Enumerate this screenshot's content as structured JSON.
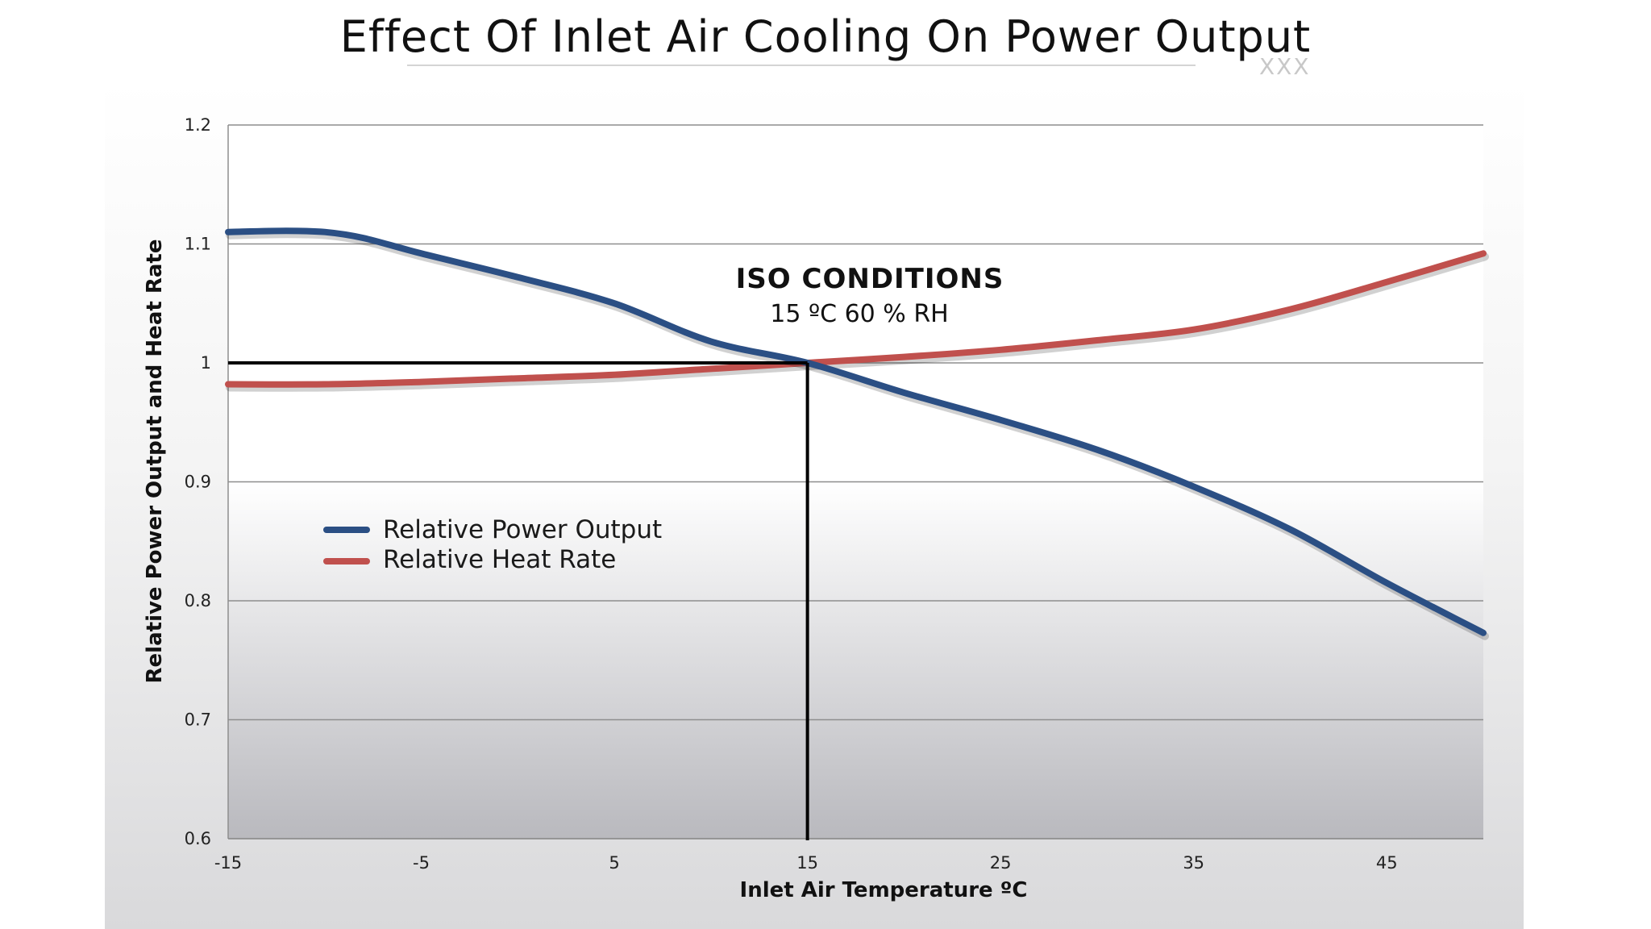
{
  "slide": {
    "title": "Effect Of Inlet Air Cooling On Power Output",
    "mark": "XXX"
  },
  "chart_data": {
    "type": "line",
    "title": "",
    "xlabel": "Inlet Air Temperature ºC",
    "ylabel": "Relative Power Output and Heat Rate",
    "xlim": [
      -15,
      50
    ],
    "ylim": [
      0.6,
      1.2
    ],
    "x_ticks": [
      -15,
      -5,
      5,
      15,
      25,
      35,
      45
    ],
    "y_ticks": [
      0.6,
      0.7,
      0.8,
      0.9,
      1,
      1.1,
      1.2
    ],
    "y_tick_labels": [
      "0.6",
      "0.7",
      "0.8",
      "0.9",
      "1",
      "1.1",
      "1.2"
    ],
    "grid": "horizontal",
    "series": [
      {
        "name": "Relative Power Output",
        "color": "#2b4f84",
        "x": [
          -15,
          -12,
          -10,
          -8,
          -5,
          0,
          5,
          10,
          15,
          20,
          25,
          30,
          35,
          40,
          45,
          50
        ],
        "y": [
          1.11,
          1.111,
          1.11,
          1.105,
          1.092,
          1.072,
          1.05,
          1.018,
          1.0,
          0.975,
          0.952,
          0.927,
          0.896,
          0.86,
          0.815,
          0.773
        ]
      },
      {
        "name": "Relative Heat Rate",
        "color": "#c0504d",
        "x": [
          -15,
          -10,
          -5,
          0,
          5,
          10,
          15,
          20,
          25,
          30,
          35,
          40,
          45,
          50
        ],
        "y": [
          0.982,
          0.982,
          0.984,
          0.987,
          0.99,
          0.995,
          1.0,
          1.005,
          1.011,
          1.019,
          1.028,
          1.045,
          1.068,
          1.092
        ]
      }
    ],
    "reference": {
      "x": 15,
      "y": 1,
      "color": "#000000"
    },
    "annotation": {
      "title": "ISO CONDITIONS",
      "subtitle": "15 ºC  60 % RH"
    },
    "legend": {
      "placement": "left-middle"
    }
  }
}
